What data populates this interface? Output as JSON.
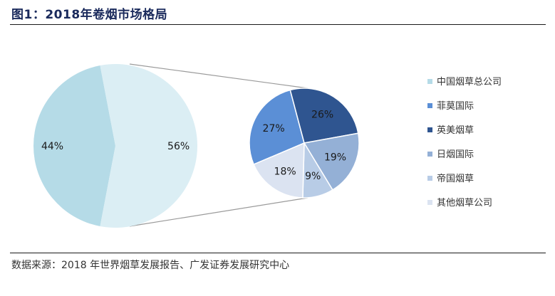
{
  "figure": {
    "title": "图1：2018年卷烟市场格局",
    "source": "数据来源：2018 年世界烟草发展报告、广发证券发展研究中心"
  },
  "chart_data": {
    "type": "pie",
    "title": "",
    "main_pie": {
      "slices": [
        {
          "label": "44%",
          "value": 44,
          "color": "#b5dbe7"
        },
        {
          "label": "56%",
          "value": 56,
          "color": "#dbeef4"
        }
      ]
    },
    "sub_pie": {
      "slices": [
        {
          "name": "菲莫国际",
          "label": "27%",
          "value": 27,
          "color": "#5b8fd6"
        },
        {
          "name": "英美烟草",
          "label": "26%",
          "value": 26,
          "color": "#2f5590"
        },
        {
          "name": "日烟国际",
          "label": "19%",
          "value": 19,
          "color": "#94b0d6"
        },
        {
          "name": "帝国烟草",
          "label": "9%",
          "value": 9,
          "color": "#b8cce6"
        },
        {
          "name": "其他烟草公司",
          "label": "18%",
          "value": 18,
          "color": "#dbe3f1"
        }
      ]
    },
    "legend": {
      "placement": "right",
      "entries": [
        {
          "name": "中国烟草总公司",
          "color": "#b5dbe7"
        },
        {
          "name": "菲莫国际",
          "color": "#5b8fd6"
        },
        {
          "name": "英美烟草",
          "color": "#2f5590"
        },
        {
          "name": "日烟国际",
          "color": "#94b0d6"
        },
        {
          "name": "帝国烟草",
          "color": "#b8cce6"
        },
        {
          "name": "其他烟草公司",
          "color": "#dbe3f1"
        }
      ]
    }
  }
}
